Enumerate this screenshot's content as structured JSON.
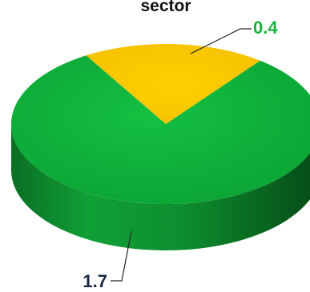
{
  "chart_data": {
    "type": "pie",
    "title": "sector",
    "slices": [
      {
        "label": "1.7",
        "value": 1.7,
        "color": "#10b43a"
      },
      {
        "label": "0.4",
        "value": 0.4,
        "color": "#f9c800"
      }
    ],
    "label_colors": {
      "0.4": "#16b43a",
      "1.7": "#1a2a44"
    },
    "style": "3d"
  }
}
